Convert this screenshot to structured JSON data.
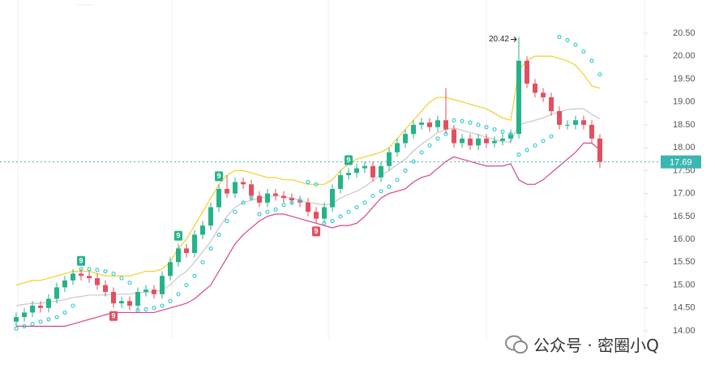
{
  "chart_data": {
    "type": "candlestick",
    "colors": {
      "up": "#26b38a",
      "down": "#e2505f",
      "upper": "#f2d02a",
      "middle": "#c8c8c8",
      "lower": "#d6478a",
      "sar": "#3cc8d8",
      "last": "#3bb6b0"
    },
    "ylim": [
      14.0,
      20.5
    ],
    "yticks": [
      {
        "value": 14.0,
        "label": "14.00"
      },
      {
        "value": 14.5,
        "label": "14.50"
      },
      {
        "value": 15.0,
        "label": "15.00"
      },
      {
        "value": 15.5,
        "label": "15.50"
      },
      {
        "value": 16.0,
        "label": "16.00"
      },
      {
        "value": 16.5,
        "label": "16.50"
      },
      {
        "value": 17.0,
        "label": "17.00"
      },
      {
        "value": 17.5,
        "label": "17.50"
      },
      {
        "value": 18.0,
        "label": "18.00"
      },
      {
        "value": 18.5,
        "label": "18.50"
      },
      {
        "value": 19.0,
        "label": "19.00"
      },
      {
        "value": 19.5,
        "label": "19.50"
      },
      {
        "value": 20.0,
        "label": "20.00"
      },
      {
        "value": 20.5,
        "label": "20.50"
      }
    ],
    "open": [
      14.2,
      14.3,
      14.4,
      14.55,
      14.5,
      14.7,
      14.95,
      15.1,
      15.25,
      15.2,
      15.15,
      15.0,
      14.85,
      14.6,
      14.65,
      14.55,
      14.85,
      14.9,
      14.8,
      15.2,
      15.5,
      15.8,
      15.7,
      16.1,
      16.3,
      16.7,
      17.1,
      17.0,
      17.25,
      17.2,
      16.95,
      16.8,
      17.0,
      16.95,
      16.9,
      16.85,
      16.8,
      16.6,
      16.45,
      16.7,
      17.1,
      17.4,
      17.45,
      17.55,
      17.6,
      17.35,
      17.6,
      17.9,
      18.1,
      18.3,
      18.5,
      18.55,
      18.45,
      18.6,
      18.4,
      18.1,
      18.2,
      18.05,
      18.2,
      18.1,
      18.15,
      18.2,
      18.3,
      19.9,
      19.4,
      19.2,
      19.1,
      18.8,
      18.5,
      18.5,
      18.6,
      18.5,
      18.2
    ],
    "high": [
      14.4,
      14.5,
      14.65,
      14.65,
      14.8,
      15.05,
      15.2,
      15.35,
      15.35,
      15.3,
      15.25,
      15.1,
      14.95,
      14.75,
      14.75,
      14.95,
      15.0,
      15.0,
      15.3,
      15.6,
      15.9,
      15.9,
      16.2,
      16.4,
      16.8,
      17.2,
      17.4,
      17.35,
      17.35,
      17.3,
      17.05,
      17.1,
      17.1,
      17.05,
      17.0,
      16.95,
      16.9,
      16.7,
      16.8,
      17.2,
      17.5,
      17.55,
      17.65,
      17.7,
      17.7,
      17.7,
      18.0,
      18.2,
      18.4,
      18.6,
      18.65,
      18.65,
      18.7,
      19.3,
      18.5,
      18.3,
      18.3,
      18.3,
      18.3,
      18.25,
      18.3,
      18.4,
      20.42,
      20.0,
      19.5,
      19.3,
      19.2,
      18.9,
      18.6,
      18.7,
      18.7,
      18.6,
      18.3
    ],
    "low": [
      14.1,
      14.2,
      14.3,
      14.4,
      14.4,
      14.6,
      14.85,
      15.0,
      15.1,
      15.05,
      14.9,
      14.75,
      14.5,
      14.5,
      14.45,
      14.45,
      14.75,
      14.7,
      14.7,
      15.1,
      15.4,
      15.6,
      15.6,
      16.0,
      16.2,
      16.6,
      16.9,
      16.9,
      17.1,
      16.85,
      16.7,
      16.7,
      16.85,
      16.8,
      16.75,
      16.7,
      16.5,
      16.35,
      16.35,
      16.6,
      17.0,
      17.3,
      17.35,
      17.45,
      17.25,
      17.25,
      17.5,
      17.8,
      18.0,
      18.2,
      18.4,
      18.35,
      18.35,
      18.3,
      18.0,
      18.0,
      17.95,
      17.95,
      18.0,
      18.0,
      18.05,
      18.1,
      18.2,
      19.3,
      19.1,
      19.0,
      18.7,
      18.4,
      18.4,
      18.4,
      18.4,
      18.1,
      17.55
    ],
    "close": [
      14.3,
      14.4,
      14.55,
      14.5,
      14.7,
      14.95,
      15.1,
      15.25,
      15.2,
      15.15,
      15.0,
      14.85,
      14.6,
      14.65,
      14.55,
      14.85,
      14.9,
      14.8,
      15.2,
      15.5,
      15.8,
      15.7,
      16.1,
      16.3,
      16.7,
      17.1,
      17.0,
      17.25,
      17.2,
      16.95,
      16.8,
      17.0,
      16.95,
      16.9,
      16.85,
      16.8,
      16.6,
      16.45,
      16.7,
      17.1,
      17.4,
      17.45,
      17.55,
      17.6,
      17.35,
      17.6,
      17.9,
      18.1,
      18.3,
      18.5,
      18.55,
      18.45,
      18.6,
      18.4,
      18.1,
      18.2,
      18.05,
      18.2,
      18.1,
      18.15,
      18.2,
      18.3,
      19.9,
      19.4,
      19.2,
      19.1,
      18.8,
      18.5,
      18.5,
      18.6,
      18.5,
      18.2,
      17.69
    ],
    "upper": [
      15.0,
      15.05,
      15.1,
      15.1,
      15.15,
      15.2,
      15.25,
      15.3,
      15.3,
      15.3,
      15.25,
      15.2,
      15.2,
      15.2,
      15.2,
      15.25,
      15.3,
      15.3,
      15.35,
      15.5,
      15.8,
      16.0,
      16.3,
      16.6,
      16.9,
      17.2,
      17.4,
      17.5,
      17.5,
      17.45,
      17.4,
      17.35,
      17.35,
      17.3,
      17.3,
      17.25,
      17.2,
      17.2,
      17.2,
      17.3,
      17.5,
      17.65,
      17.75,
      17.8,
      17.85,
      17.9,
      18.0,
      18.2,
      18.4,
      18.6,
      18.8,
      19.0,
      19.1,
      19.1,
      19.05,
      19.0,
      18.95,
      18.9,
      18.85,
      18.75,
      18.65,
      18.6,
      19.7,
      19.9,
      20.0,
      20.0,
      20.0,
      19.95,
      19.9,
      19.8,
      19.6,
      19.35,
      19.3
    ],
    "middle": [
      14.55,
      14.58,
      14.6,
      14.6,
      14.63,
      14.65,
      14.68,
      14.73,
      14.75,
      14.78,
      14.78,
      14.78,
      14.8,
      14.8,
      14.8,
      14.83,
      14.85,
      14.85,
      14.9,
      15.0,
      15.18,
      15.3,
      15.5,
      15.73,
      15.95,
      16.25,
      16.5,
      16.7,
      16.8,
      16.85,
      16.9,
      16.93,
      16.95,
      16.93,
      16.9,
      16.85,
      16.8,
      16.78,
      16.75,
      16.78,
      16.9,
      16.98,
      17.05,
      17.15,
      17.28,
      17.4,
      17.5,
      17.63,
      17.75,
      17.93,
      18.08,
      18.2,
      18.33,
      18.4,
      18.43,
      18.38,
      18.33,
      18.28,
      18.23,
      18.18,
      18.13,
      18.13,
      18.5,
      18.55,
      18.6,
      18.65,
      18.73,
      18.78,
      18.83,
      18.85,
      18.85,
      18.73,
      18.63
    ],
    "lower": [
      14.1,
      14.1,
      14.1,
      14.1,
      14.1,
      14.1,
      14.1,
      14.15,
      14.2,
      14.25,
      14.3,
      14.35,
      14.4,
      14.4,
      14.4,
      14.4,
      14.4,
      14.4,
      14.45,
      14.5,
      14.55,
      14.6,
      14.7,
      14.85,
      15.0,
      15.3,
      15.6,
      15.9,
      16.1,
      16.25,
      16.4,
      16.5,
      16.55,
      16.55,
      16.5,
      16.45,
      16.4,
      16.35,
      16.3,
      16.25,
      16.3,
      16.3,
      16.35,
      16.5,
      16.7,
      16.9,
      17.0,
      17.05,
      17.1,
      17.25,
      17.35,
      17.4,
      17.55,
      17.7,
      17.8,
      17.75,
      17.7,
      17.65,
      17.6,
      17.6,
      17.6,
      17.65,
      17.3,
      17.2,
      17.2,
      17.3,
      17.45,
      17.6,
      17.75,
      17.9,
      18.1,
      18.1,
      17.95
    ],
    "sar": [
      14.05,
      14.1,
      14.15,
      14.2,
      14.25,
      14.3,
      14.4,
      14.55,
      15.35,
      15.35,
      15.33,
      15.3,
      15.25,
      15.15,
      15.05,
      14.45,
      14.47,
      14.5,
      14.55,
      14.65,
      14.8,
      15.0,
      15.2,
      15.5,
      15.8,
      16.1,
      16.4,
      16.6,
      16.8,
      16.9,
      16.55,
      16.6,
      16.65,
      16.75,
      16.8,
      16.85,
      17.25,
      17.2,
      16.35,
      16.4,
      16.5,
      16.6,
      16.7,
      16.8,
      16.95,
      17.05,
      17.15,
      17.3,
      17.5,
      17.7,
      17.9,
      18.05,
      18.2,
      18.3,
      18.6,
      18.58,
      18.55,
      18.5,
      18.45,
      18.4,
      18.35,
      18.3,
      17.85,
      17.95,
      18.05,
      18.15,
      18.25,
      20.42,
      20.35,
      20.25,
      20.1,
      19.9,
      19.6
    ],
    "td_markers": [
      {
        "index": 8,
        "text": "9",
        "side": "above"
      },
      {
        "index": 12,
        "text": "9",
        "side": "below"
      },
      {
        "index": 20,
        "text": "9",
        "side": "above"
      },
      {
        "index": 25,
        "text": "9",
        "side": "above"
      },
      {
        "index": 37,
        "text": "9",
        "side": "below"
      },
      {
        "index": 41,
        "text": "9",
        "side": "above"
      }
    ],
    "high_annotation": {
      "index": 62,
      "text": "20.42"
    },
    "last_price": 17.69
  },
  "watermark": "公众号 · 密圈小Q"
}
